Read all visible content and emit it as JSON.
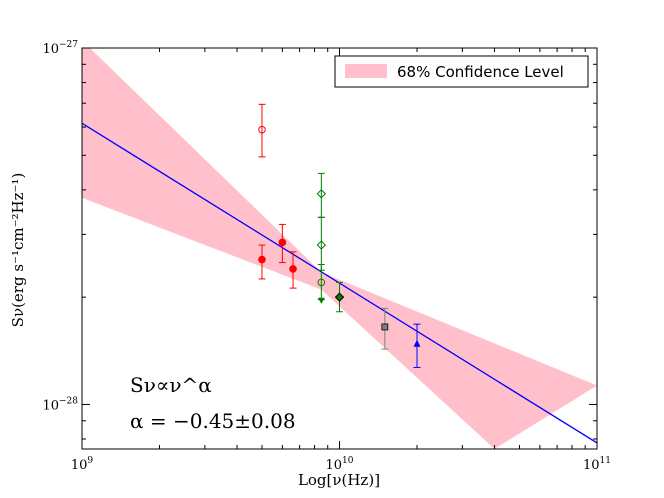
{
  "chart_data": {
    "type": "scatter",
    "title": "",
    "xlabel": "Log[ν(Hz)]",
    "ylabel": "Sν(erg s⁻¹cm⁻²Hz⁻¹)",
    "xscale": "log",
    "yscale": "log",
    "xlim": [
      1000000000.0,
      100000000000.0
    ],
    "ylim": [
      7.5e-29,
      1e-27
    ],
    "x_ticks": [
      {
        "value": 1000000000.0,
        "base": "10",
        "exp": "9"
      },
      {
        "value": 10000000000.0,
        "base": "10",
        "exp": "10"
      },
      {
        "value": 100000000000.0,
        "base": "10",
        "exp": "11"
      }
    ],
    "y_ticks": [
      {
        "value": 1e-28,
        "base": "10",
        "exp": "−28"
      },
      {
        "value": 1e-27,
        "base": "10",
        "exp": "−27"
      }
    ],
    "fit": {
      "name": "power-law fit",
      "color": "#0000ff",
      "x": [
        1000000000.0,
        100000000000.0
      ],
      "y": [
        6.15e-28,
        7.8e-29
      ]
    },
    "band": {
      "name": "68% Confidence Level",
      "color": "#ffc0cb",
      "upper": [
        {
          "x": 1000000000.0,
          "y": 1.05e-27
        },
        {
          "x": 8500000000.0,
          "y": 2.35e-28
        },
        {
          "x": 100000000000.0,
          "y": 1.13e-28
        }
      ],
      "lower": [
        {
          "x": 1000000000.0,
          "y": 3.8e-28
        },
        {
          "x": 8500000000.0,
          "y": 2.1e-28
        },
        {
          "x": 40000000000.0,
          "y": 7.5e-29
        }
      ]
    },
    "series": [
      {
        "name": "red-open-circle",
        "color": "#ff0000",
        "marker": "circle-open",
        "points": [
          {
            "x": 5000000000.0,
            "y": 5.9e-28,
            "lo": 4.95e-28,
            "hi": 6.95e-28
          }
        ]
      },
      {
        "name": "red-filled",
        "color": "#ff0000",
        "marker": "circle",
        "points": [
          {
            "x": 5000000000.0,
            "y": 2.55e-28,
            "lo": 2.25e-28,
            "hi": 2.8e-28
          },
          {
            "x": 6000000000.0,
            "y": 2.85e-28,
            "lo": 2.5e-28,
            "hi": 3.2e-28
          },
          {
            "x": 6600000000.0,
            "y": 2.4e-28,
            "lo": 2.12e-28,
            "hi": 2.68e-28
          }
        ]
      },
      {
        "name": "green-open-diamond",
        "color": "#008000",
        "marker": "diamond-open",
        "points": [
          {
            "x": 8500000000.0,
            "y": 3.9e-28,
            "lo": 3.35e-28,
            "hi": 4.45e-28
          },
          {
            "x": 8500000000.0,
            "y": 2.8e-28,
            "lo": 2.38e-28,
            "hi": 3.35e-28
          }
        ]
      },
      {
        "name": "green-open-circle",
        "color": "#008000",
        "marker": "circle-open",
        "points": [
          {
            "x": 8500000000.0,
            "y": 2.2e-28,
            "lo": 1.97e-28,
            "hi": 2.47e-28
          }
        ]
      },
      {
        "name": "green-down-triangle",
        "color": "#008000",
        "marker": "triangle-down",
        "points": [
          {
            "x": 8500000000.0,
            "y": 1.96e-28
          }
        ]
      },
      {
        "name": "green-filled-diamond",
        "color": "#008000",
        "marker": "diamond",
        "points": [
          {
            "x": 10000000000.0,
            "y": 2e-28,
            "lo": 1.82e-28,
            "hi": 2.2e-28
          }
        ]
      },
      {
        "name": "gray-square",
        "color": "#808080",
        "marker": "square",
        "points": [
          {
            "x": 15000000000.0,
            "y": 1.65e-28,
            "lo": 1.43e-28,
            "hi": 1.86e-28
          }
        ]
      },
      {
        "name": "blue-triangle",
        "color": "#0000ff",
        "marker": "triangle-up",
        "points": [
          {
            "x": 20000000000.0,
            "y": 1.48e-28,
            "lo": 1.27e-28,
            "hi": 1.68e-28
          }
        ]
      }
    ],
    "legend": {
      "label": "68% Confidence Level",
      "position": "top-right"
    },
    "annotations": {
      "relation": "Sν∝ν^α",
      "alpha": "α = −0.45±0.08"
    }
  }
}
